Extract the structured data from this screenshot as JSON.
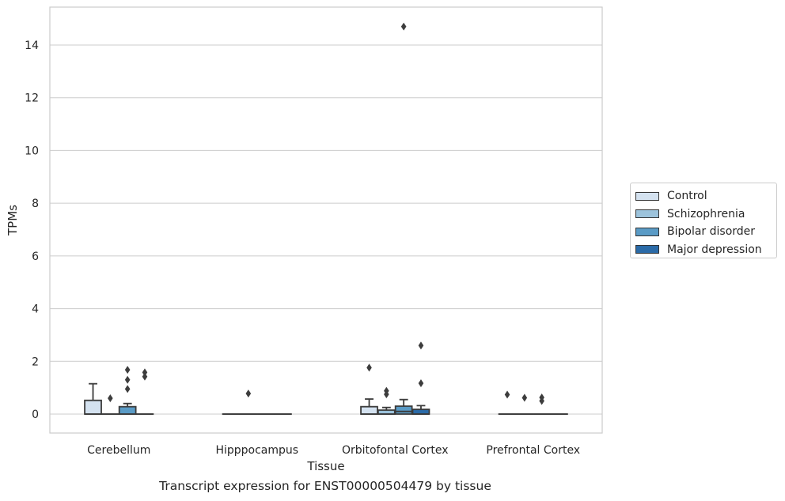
{
  "chart_data": {
    "type": "box",
    "xlabel": "Tissue",
    "ylabel": "TPMs",
    "caption": "Transcript expression for ENST00000504479 by tissue",
    "ylim": [
      -0.7,
      15.4
    ],
    "yticks": [
      0,
      2,
      4,
      6,
      8,
      10,
      12,
      14
    ],
    "grid": true,
    "legend_position": "right",
    "categories": [
      "Cerebellum",
      "Hipppocampus",
      "Orbitofontal Cortex",
      "Prefrontal Cortex"
    ],
    "series": [
      {
        "name": "Control",
        "color": "#d4e2f0",
        "boxes": [
          {
            "q1": 0,
            "median": 0,
            "q3": 0.52,
            "whislo": 0,
            "whishi": 1.15,
            "fliers": []
          },
          {
            "q1": 0,
            "median": 0,
            "q3": 0,
            "whislo": 0,
            "whishi": 0,
            "fliers": []
          },
          {
            "q1": 0,
            "median": 0,
            "q3": 0.28,
            "whislo": 0,
            "whishi": 0.57,
            "fliers": [
              1.76
            ]
          },
          {
            "q1": 0,
            "median": 0,
            "q3": 0,
            "whislo": 0,
            "whishi": 0,
            "fliers": [
              0.74
            ]
          }
        ]
      },
      {
        "name": "Schizophrenia",
        "color": "#9cc3dc",
        "boxes": [
          {
            "q1": 0,
            "median": 0,
            "q3": 0,
            "whislo": 0,
            "whishi": 0,
            "fliers": [
              0.6
            ]
          },
          {
            "q1": 0,
            "median": 0,
            "q3": 0,
            "whislo": 0,
            "whishi": 0,
            "fliers": [
              0.78
            ]
          },
          {
            "q1": 0,
            "median": 0,
            "q3": 0.15,
            "whislo": 0,
            "whishi": 0.25,
            "fliers": [
              0.75,
              0.88
            ]
          },
          {
            "q1": 0,
            "median": 0,
            "q3": 0,
            "whislo": 0,
            "whishi": 0,
            "fliers": [
              0.62
            ]
          }
        ]
      },
      {
        "name": "Bipolar disorder",
        "color": "#5a9bc6",
        "boxes": [
          {
            "q1": 0,
            "median": 0,
            "q3": 0.28,
            "whislo": 0,
            "whishi": 0.4,
            "fliers": [
              0.95,
              1.3,
              1.68
            ]
          },
          {
            "q1": 0,
            "median": 0,
            "q3": 0,
            "whislo": 0,
            "whishi": 0,
            "fliers": []
          },
          {
            "q1": 0,
            "median": 0.1,
            "q3": 0.3,
            "whislo": 0,
            "whishi": 0.55,
            "fliers": [
              14.7
            ]
          },
          {
            "q1": 0,
            "median": 0,
            "q3": 0,
            "whislo": 0,
            "whishi": 0,
            "fliers": [
              0.5,
              0.63
            ]
          }
        ]
      },
      {
        "name": "Major depression",
        "color": "#2b6ba8",
        "boxes": [
          {
            "q1": 0,
            "median": 0,
            "q3": 0,
            "whislo": 0,
            "whishi": 0,
            "fliers": [
              1.42,
              1.58
            ]
          },
          {
            "q1": 0,
            "median": 0,
            "q3": 0,
            "whislo": 0,
            "whishi": 0,
            "fliers": []
          },
          {
            "q1": 0,
            "median": 0,
            "q3": 0.18,
            "whislo": 0,
            "whishi": 0.32,
            "fliers": [
              1.17,
              2.6
            ]
          },
          {
            "q1": 0,
            "median": 0,
            "q3": 0,
            "whislo": 0,
            "whishi": 0,
            "fliers": []
          }
        ]
      }
    ]
  }
}
